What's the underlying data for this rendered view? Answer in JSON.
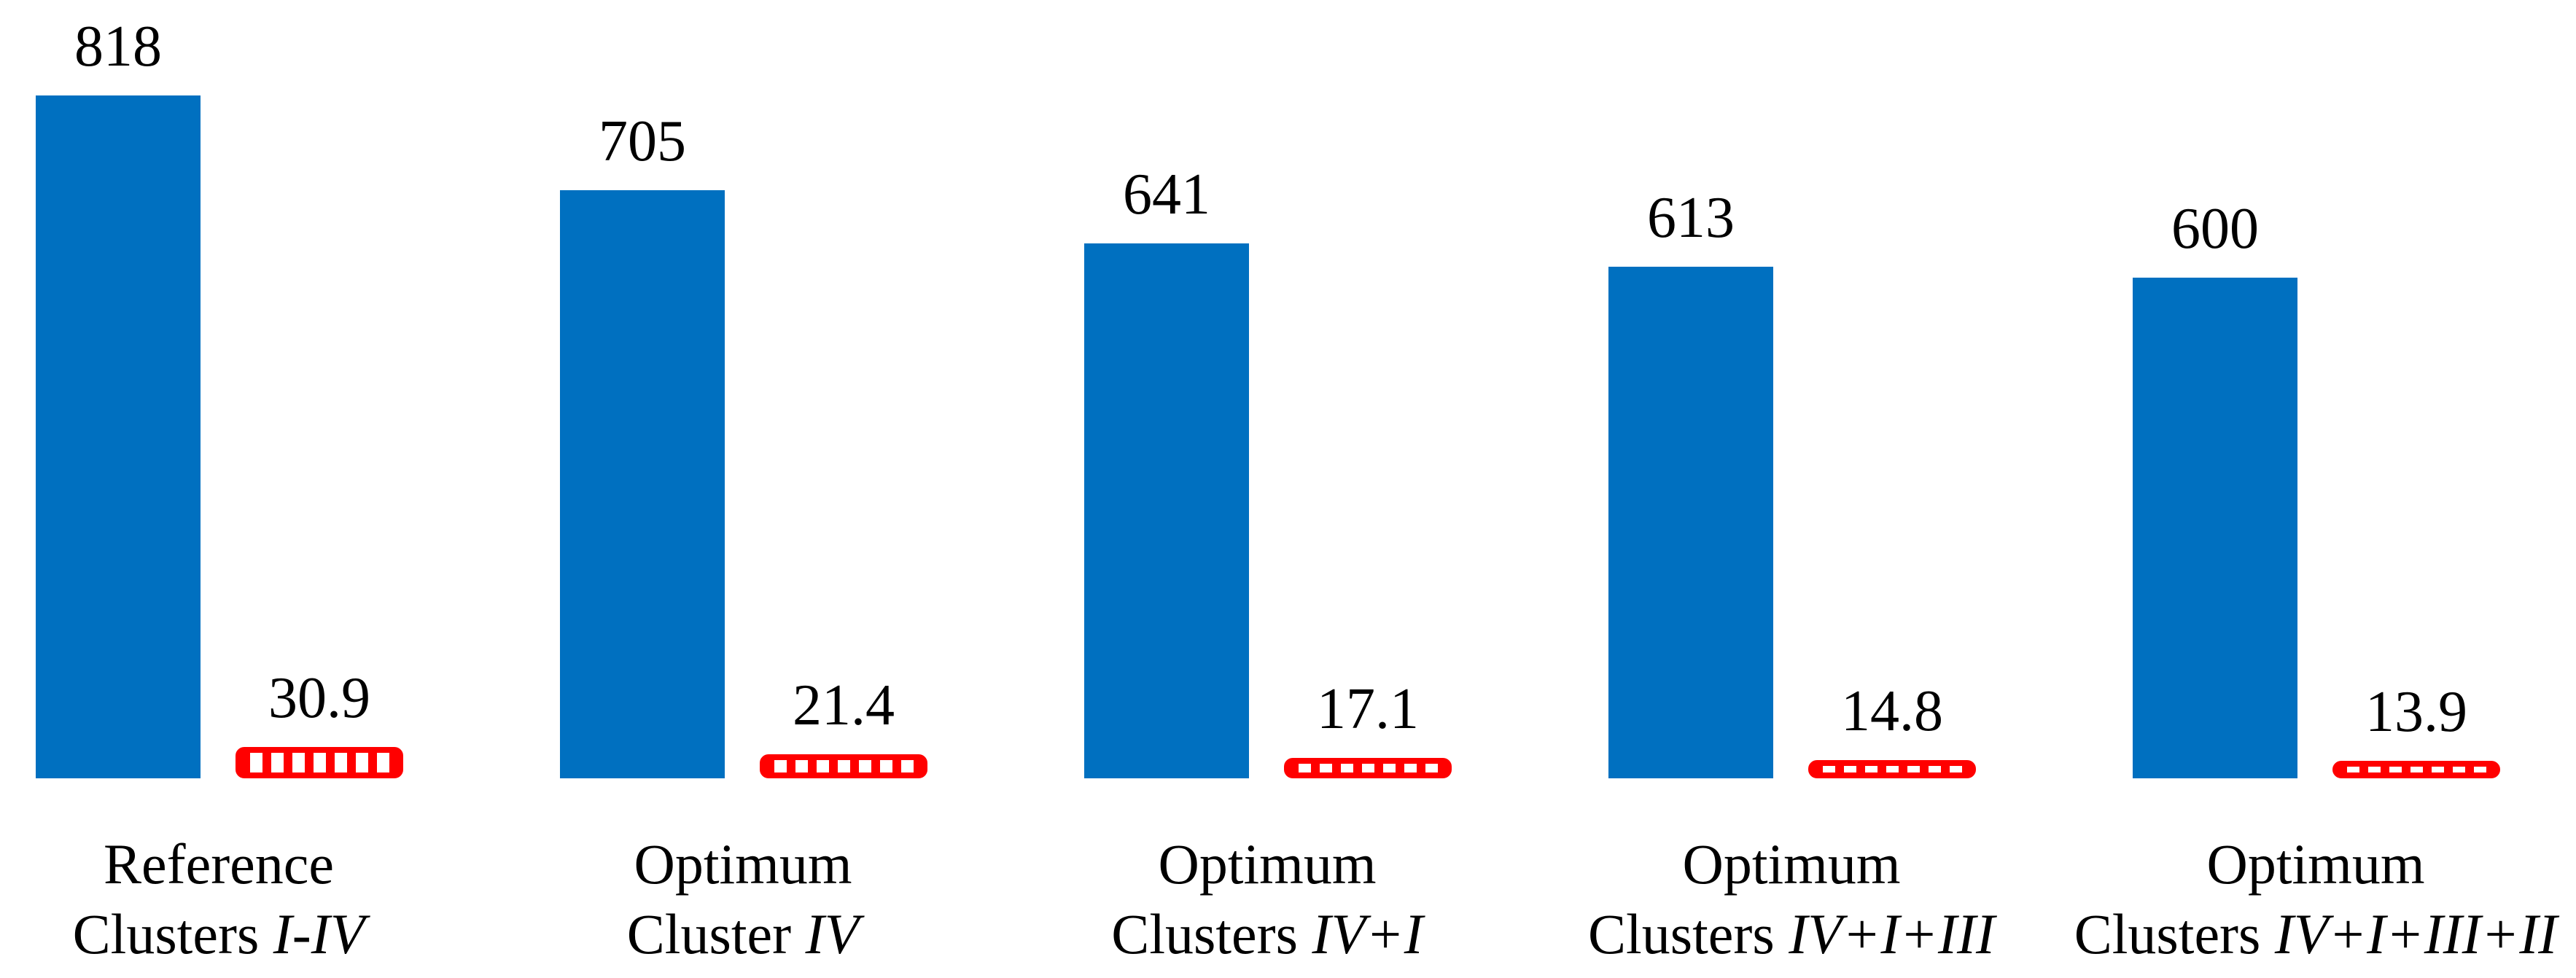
{
  "chart_data": {
    "type": "bar",
    "title": "",
    "xlabel": "",
    "ylabel": "",
    "grid": false,
    "legend": false,
    "axes_visible": false,
    "background_color": "#FFFFFF",
    "text_color": "#000000",
    "categories": [
      "Reference Clusters I-IV",
      "Optimum Cluster IV",
      "Optimum Clusters IV+I",
      "Optimum Clusters IV+I+III",
      "Optimum Clusters IV+I+III+II"
    ],
    "categories_rich": [
      {
        "line1": "Reference",
        "line2_prefix": "Clusters ",
        "line2_italic": "I-IV"
      },
      {
        "line1": "Optimum",
        "line2_prefix": "Cluster ",
        "line2_italic": "IV"
      },
      {
        "line1": "Optimum",
        "line2_prefix": "Clusters ",
        "line2_italic": "IV+I"
      },
      {
        "line1": "Optimum",
        "line2_prefix": "Clusters ",
        "line2_italic": "IV+I+III"
      },
      {
        "line1": "Optimum",
        "line2_prefix": "Clusters ",
        "line2_italic": "IV+I+III+II"
      }
    ],
    "series": [
      {
        "name": "series1",
        "style": "solid",
        "color": "#0070C0",
        "values": [
          818,
          705,
          641,
          613,
          600
        ],
        "labels": [
          "818",
          "705",
          "641",
          "613",
          "600"
        ]
      },
      {
        "name": "series2",
        "style": "dashed",
        "color": "#FF0000",
        "pattern_gap_color": "#FFFFFF",
        "values": [
          30.9,
          21.4,
          17.1,
          14.8,
          13.9
        ],
        "labels": [
          "30.9",
          "21.4",
          "17.1",
          "14.8",
          "13.9"
        ]
      }
    ]
  }
}
